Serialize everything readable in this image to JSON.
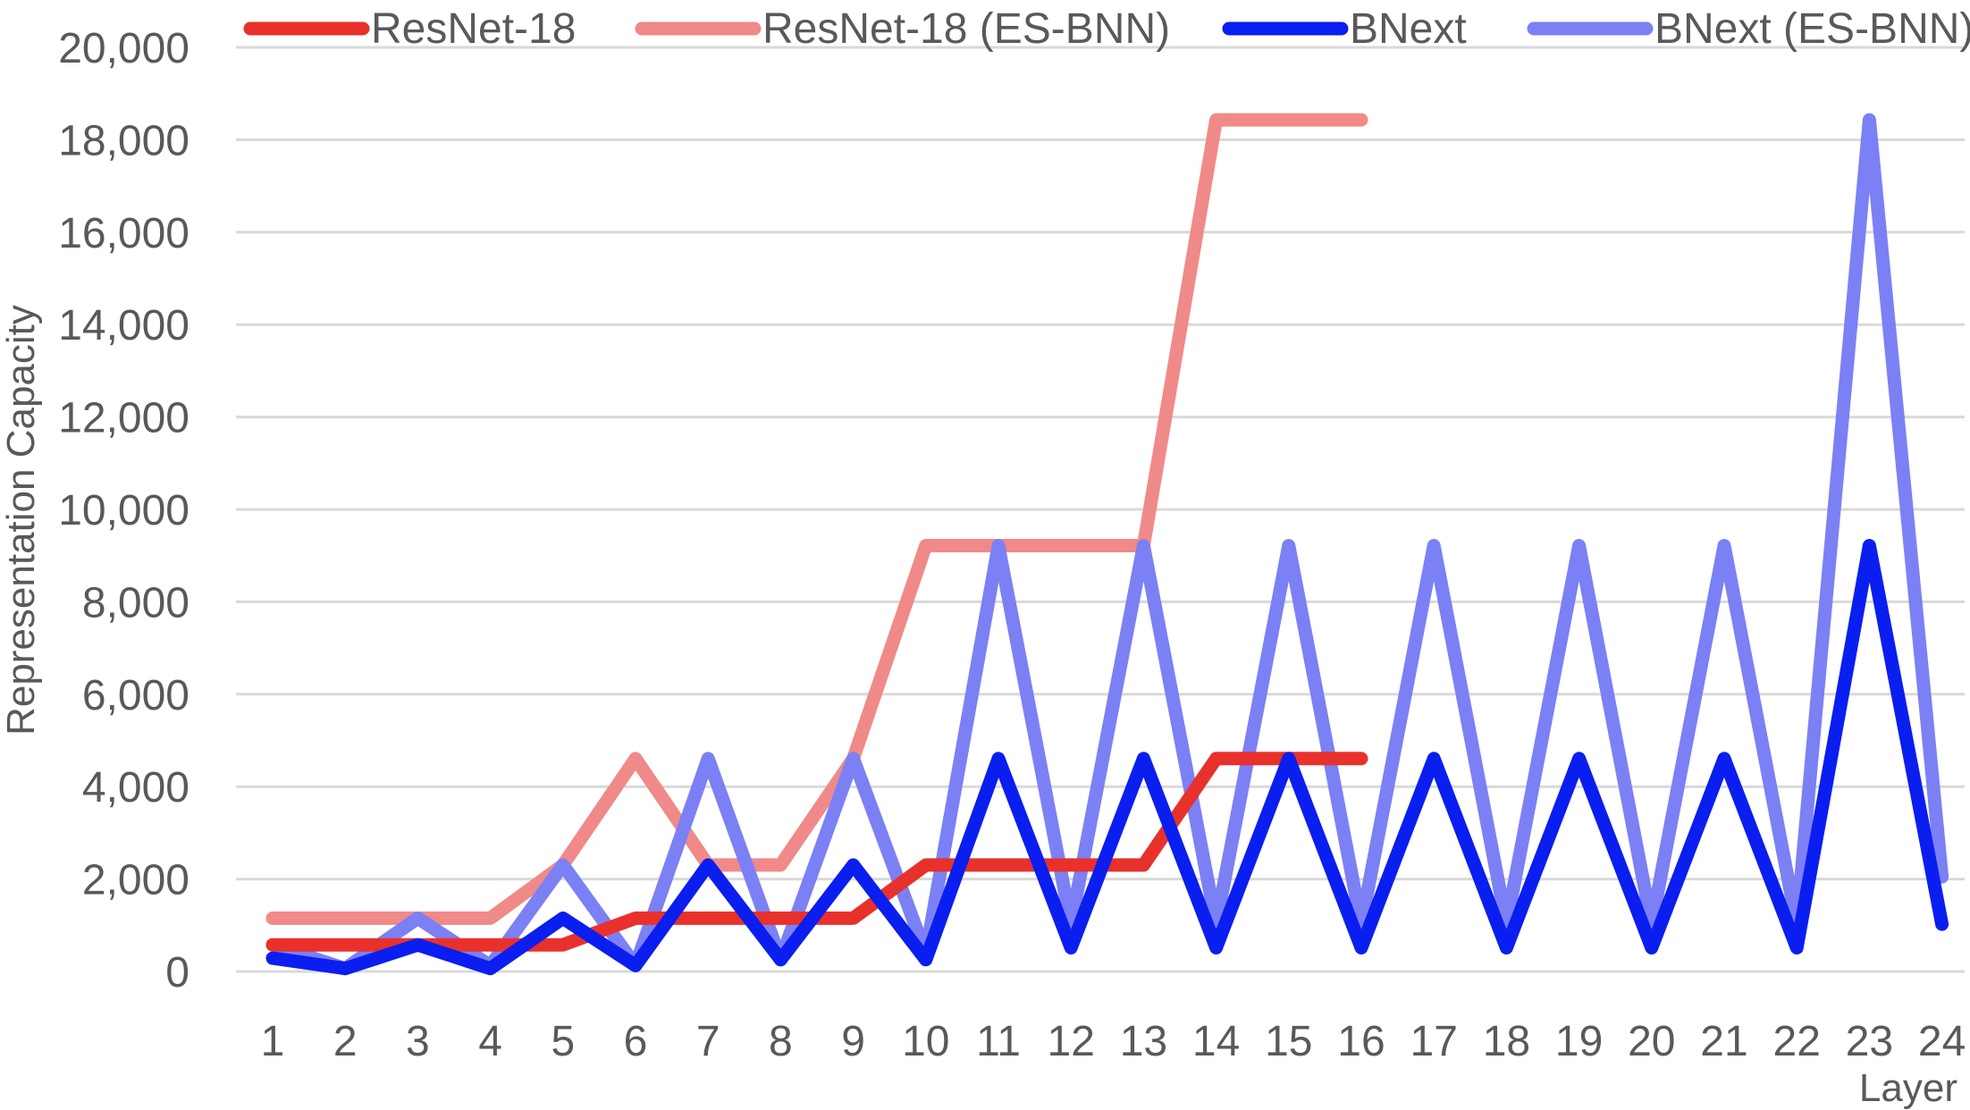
{
  "chart_data": {
    "type": "line",
    "title": "",
    "xlabel": "Layer",
    "ylabel": "Representation Capacity",
    "categories": [
      "1",
      "2",
      "3",
      "4",
      "5",
      "6",
      "7",
      "8",
      "9",
      "10",
      "11",
      "12",
      "13",
      "14",
      "15",
      "16",
      "17",
      "18",
      "19",
      "20",
      "21",
      "22",
      "23",
      "24"
    ],
    "ylim": [
      0,
      20000
    ],
    "yticks": [
      0,
      2000,
      4000,
      6000,
      8000,
      10000,
      12000,
      14000,
      16000,
      18000,
      20000
    ],
    "ytick_labels": [
      "0",
      "2,000",
      "4,000",
      "6,000",
      "8,000",
      "10,000",
      "12,000",
      "14,000",
      "16,000",
      "18,000",
      "20,000"
    ],
    "grid": true,
    "legend_position": "top",
    "series": [
      {
        "name": "ResNet-18",
        "color": "#e8312b",
        "values": [
          576,
          576,
          576,
          576,
          576,
          1152,
          1152,
          1152,
          1152,
          2304,
          2304,
          2304,
          2304,
          4608,
          4608,
          4608,
          null,
          null,
          null,
          null,
          null,
          null,
          null,
          null
        ]
      },
      {
        "name": "ResNet-18 (ES-BNN)",
        "color": "#f08a88",
        "values": [
          1152,
          1152,
          1152,
          1152,
          2304,
          4608,
          2304,
          2304,
          4608,
          9216,
          9216,
          9216,
          9216,
          18432,
          18432,
          18432,
          null,
          null,
          null,
          null,
          null,
          null,
          null,
          null
        ]
      },
      {
        "name": "BNext",
        "color": "#0a1ef0",
        "values": [
          288,
          64,
          576,
          64,
          1152,
          128,
          2304,
          256,
          2304,
          256,
          4608,
          512,
          4608,
          512,
          4608,
          512,
          4608,
          512,
          4608,
          512,
          4608,
          512,
          9216,
          1024
        ]
      },
      {
        "name": "BNext (ES-BNN)",
        "color": "#7b80f5",
        "values": [
          576,
          64,
          1152,
          128,
          2304,
          128,
          4608,
          256,
          4608,
          384,
          9216,
          1024,
          9216,
          1024,
          9216,
          1024,
          9216,
          1024,
          9216,
          1024,
          9216,
          1024,
          18432,
          2048
        ]
      }
    ]
  }
}
